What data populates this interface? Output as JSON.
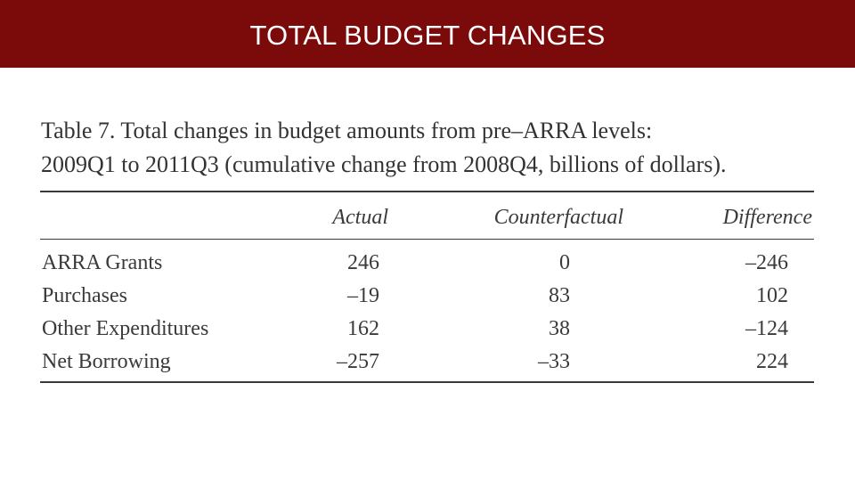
{
  "header": {
    "title": "TOTAL BUDGET CHANGES",
    "background_color": "#7b0b0b"
  },
  "table": {
    "caption_line1": "Table 7.  Total changes in budget amounts from pre–ARRA levels:",
    "caption_line2": "2009Q1 to 2011Q3 (cumulative change from 2008Q4, billions of dollars).",
    "columns": [
      "Actual",
      "Counterfactual",
      "Difference"
    ],
    "rows": [
      {
        "label": "ARRA Grants",
        "actual": "246",
        "counterfactual": "0",
        "difference": "–246"
      },
      {
        "label": "Purchases",
        "actual": "–19",
        "counterfactual": "83",
        "difference": "102"
      },
      {
        "label": "Other Expenditures",
        "actual": "162",
        "counterfactual": "38",
        "difference": "–124"
      },
      {
        "label": "Net Borrowing",
        "actual": "–257",
        "counterfactual": "–33",
        "difference": "224"
      }
    ]
  }
}
